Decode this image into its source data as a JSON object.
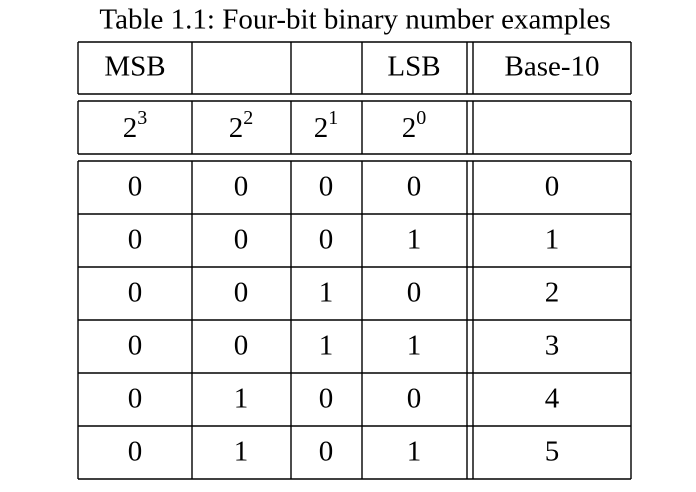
{
  "caption": "Table 1.1: Four-bit binary number examples",
  "header": {
    "msb": "MSB",
    "lsb": "LSB",
    "base10": "Base-10"
  },
  "powers": [
    {
      "base": "2",
      "exponent": "3"
    },
    {
      "base": "2",
      "exponent": "2"
    },
    {
      "base": "2",
      "exponent": "1"
    },
    {
      "base": "2",
      "exponent": "0"
    }
  ],
  "rows": [
    [
      0,
      0,
      0,
      0,
      0
    ],
    [
      0,
      0,
      0,
      1,
      1
    ],
    [
      0,
      0,
      1,
      0,
      2
    ],
    [
      0,
      0,
      1,
      1,
      3
    ],
    [
      0,
      1,
      0,
      0,
      4
    ],
    [
      0,
      1,
      0,
      1,
      5
    ]
  ]
}
